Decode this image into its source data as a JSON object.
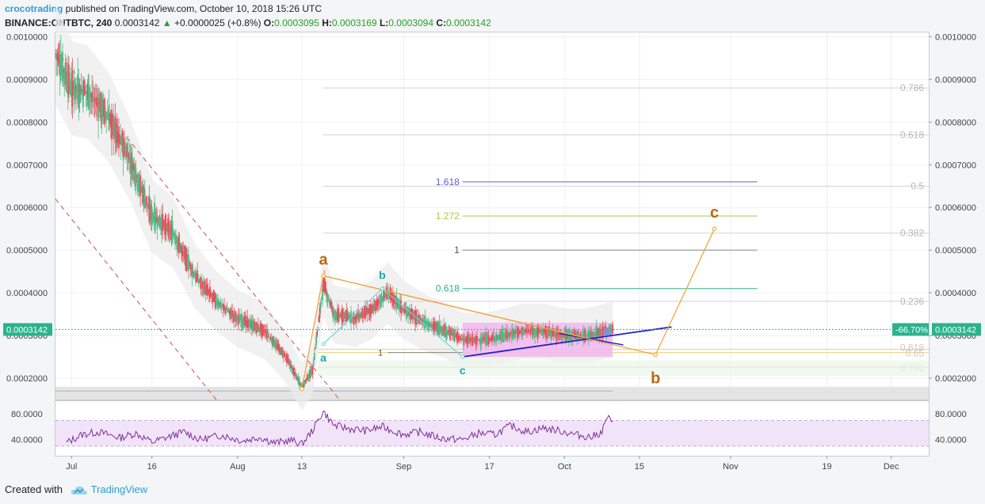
{
  "header": {
    "author": "crocotrading",
    "published": " published on TradingView.com, October 10, 2018 15:26 UTC",
    "symbol": "BINANCE:ONTBTC, 240",
    "last": "0.0003142",
    "change_arrow": "▲",
    "change": "+0.0000025 (+0.8%)",
    "o_label": "O:",
    "o_value": "0.0003095",
    "h_label": "H:",
    "h_value": "0.0003169",
    "l_label": "L:",
    "l_value": "0.0003094",
    "c_label": "C:",
    "c_value": "0.0003142"
  },
  "footer": {
    "created": "Created with",
    "brand": "TradingView"
  },
  "colors": {
    "up": "#53b987",
    "down": "#eb4d5c",
    "rsi": "#7e2f9a",
    "wave_abc": "#f0a030",
    "wave_small": "#5fd8e0",
    "trendline": "#2020c8",
    "price_line": "#2bb38e",
    "fib_pos": "#5d5fd6"
  },
  "chart_data": {
    "type": "candlestick",
    "symbol": "ONTBTC",
    "exchange": "BINANCE",
    "interval": "240",
    "ylim": [
      0.00015,
      0.00101
    ],
    "y_ticks": [
      "0.0010000",
      "0.0009000",
      "0.0008000",
      "0.0007000",
      "0.0006000",
      "0.0005000",
      "0.0004000",
      "0.0003000",
      "0.0002000"
    ],
    "y_tick_values": [
      0.001,
      0.0009,
      0.0008,
      0.0007,
      0.0006,
      0.0005,
      0.0004,
      0.0003,
      0.0002
    ],
    "x_range": [
      "2018-06-28",
      "2018-12-08"
    ],
    "x_ticks": [
      {
        "date": "2018-07-01",
        "label": "Jul"
      },
      {
        "date": "2018-07-16",
        "label": "16"
      },
      {
        "date": "2018-08-01",
        "label": "Aug"
      },
      {
        "date": "2018-08-13",
        "label": "13"
      },
      {
        "date": "2018-09-01",
        "label": "Sep"
      },
      {
        "date": "2018-09-17",
        "label": "17"
      },
      {
        "date": "2018-10-01",
        "label": "Oct"
      },
      {
        "date": "2018-10-15",
        "label": "15"
      },
      {
        "date": "2018-11-01",
        "label": "Nov"
      },
      {
        "date": "2018-11-19",
        "label": "19"
      },
      {
        "date": "2018-12-01",
        "label": "Dec"
      }
    ],
    "price_path": [
      [
        "2018-06-28",
        0.00096
      ],
      [
        "2018-07-01",
        0.00088
      ],
      [
        "2018-07-04",
        0.00087
      ],
      [
        "2018-07-08",
        0.00081
      ],
      [
        "2018-07-12",
        0.00071
      ],
      [
        "2018-07-16",
        0.00058
      ],
      [
        "2018-07-20",
        0.00054
      ],
      [
        "2018-07-24",
        0.00044
      ],
      [
        "2018-07-28",
        0.00038
      ],
      [
        "2018-08-01",
        0.00034
      ],
      [
        "2018-08-06",
        0.00031
      ],
      [
        "2018-08-10",
        0.00025
      ],
      [
        "2018-08-13",
        0.00018
      ],
      [
        "2018-08-15",
        0.00022
      ],
      [
        "2018-08-17",
        0.00042
      ],
      [
        "2018-08-19",
        0.00035
      ],
      [
        "2018-08-23",
        0.00034
      ],
      [
        "2018-08-26",
        0.00036
      ],
      [
        "2018-08-29",
        0.0004
      ],
      [
        "2018-09-01",
        0.00036
      ],
      [
        "2018-09-05",
        0.00033
      ],
      [
        "2018-09-09",
        0.00031
      ],
      [
        "2018-09-12",
        0.00029
      ],
      [
        "2018-09-16",
        0.00029
      ],
      [
        "2018-09-20",
        0.0003
      ],
      [
        "2018-09-23",
        0.00031
      ],
      [
        "2018-09-27",
        0.00031
      ],
      [
        "2018-10-01",
        0.0003
      ],
      [
        "2018-10-05",
        0.0003
      ],
      [
        "2018-10-10",
        0.0003142
      ]
    ],
    "current_price": {
      "value": 0.0003142,
      "label": "0.0003142"
    },
    "change_label": "-66.70%",
    "support_zone": [
      0.00015,
      0.00018
    ],
    "support_line": 0.00017,
    "consolidation_box": {
      "x": [
        "2018-09-12",
        "2018-10-10"
      ],
      "y": [
        0.00025,
        0.00033
      ]
    },
    "retracement_fib": {
      "x": [
        "2018-08-17",
        "2018-12-08"
      ],
      "levels": [
        {
          "label": "0.786",
          "value": 0.00088
        },
        {
          "label": "0.618",
          "value": 0.00077
        },
        {
          "label": "0.5",
          "value": 0.00065
        },
        {
          "label": "0.382",
          "value": 0.00054
        },
        {
          "label": "0.236",
          "value": 0.00038
        }
      ],
      "lower_levels": [
        {
          "label": "0.618",
          "value": 0.000268
        },
        {
          "label": "0.65",
          "value": 0.00026
        },
        {
          "label": "0.786",
          "value": 0.000226
        }
      ]
    },
    "extension_fib": {
      "x": [
        "2018-09-12",
        "2018-11-06"
      ],
      "levels": [
        {
          "label": "1.618",
          "value": 0.00066,
          "color": "#5d5fd6"
        },
        {
          "label": "1.272",
          "value": 0.00058,
          "color": "#a6c84c"
        },
        {
          "label": "1",
          "value": 0.0005,
          "color": "#888888"
        },
        {
          "label": "0.618",
          "value": 0.00041,
          "color": "#2bb38e"
        }
      ]
    },
    "fib_base": {
      "label": "1",
      "value": 0.00026
    },
    "waves": {
      "abc": [
        {
          "label": "",
          "date": "2018-08-13",
          "value": 0.000175
        },
        {
          "label": "a",
          "date": "2018-08-17",
          "value": 0.00044
        },
        {
          "label": "b",
          "date": "2018-10-18",
          "value": 0.000255
        },
        {
          "label": "c",
          "date": "2018-10-29",
          "value": 0.00055
        }
      ],
      "small": [
        {
          "label": "a",
          "date": "2018-08-17",
          "value": 0.00028
        },
        {
          "label": "b",
          "date": "2018-08-28",
          "value": 0.00041
        },
        {
          "label": "c",
          "date": "2018-09-12",
          "value": 0.00025
        }
      ]
    },
    "triangle": {
      "upper": [
        [
          "2018-08-17",
          0.00044
        ],
        [
          "2018-10-10",
          0.00028
        ]
      ],
      "lower": [
        [
          "2018-09-12",
          0.00025
        ],
        [
          "2018-10-21",
          0.00032
        ]
      ]
    },
    "rsi": {
      "ylim": [
        15,
        100
      ],
      "ticks": [
        "80.0000",
        "40.0000"
      ],
      "tick_values": [
        80,
        40
      ],
      "band": [
        30,
        70
      ],
      "path": [
        [
          "2018-06-30",
          35
        ],
        [
          "2018-07-03",
          48
        ],
        [
          "2018-07-06",
          52
        ],
        [
          "2018-07-10",
          43
        ],
        [
          "2018-07-13",
          50
        ],
        [
          "2018-07-16",
          36
        ],
        [
          "2018-07-19",
          44
        ],
        [
          "2018-07-22",
          52
        ],
        [
          "2018-07-25",
          40
        ],
        [
          "2018-07-29",
          47
        ],
        [
          "2018-08-02",
          38
        ],
        [
          "2018-08-05",
          44
        ],
        [
          "2018-08-08",
          35
        ],
        [
          "2018-08-11",
          39
        ],
        [
          "2018-08-13",
          33
        ],
        [
          "2018-08-15",
          55
        ],
        [
          "2018-08-17",
          84
        ],
        [
          "2018-08-19",
          62
        ],
        [
          "2018-08-22",
          57
        ],
        [
          "2018-08-25",
          54
        ],
        [
          "2018-08-28",
          60
        ],
        [
          "2018-09-01",
          48
        ],
        [
          "2018-09-04",
          52
        ],
        [
          "2018-09-08",
          42
        ],
        [
          "2018-09-12",
          40
        ],
        [
          "2018-09-15",
          50
        ],
        [
          "2018-09-18",
          48
        ],
        [
          "2018-09-21",
          62
        ],
        [
          "2018-09-24",
          52
        ],
        [
          "2018-09-27",
          58
        ],
        [
          "2018-09-30",
          54
        ],
        [
          "2018-10-03",
          48
        ],
        [
          "2018-10-06",
          44
        ],
        [
          "2018-10-08",
          52
        ],
        [
          "2018-10-09",
          76
        ],
        [
          "2018-10-10",
          64
        ]
      ]
    }
  }
}
